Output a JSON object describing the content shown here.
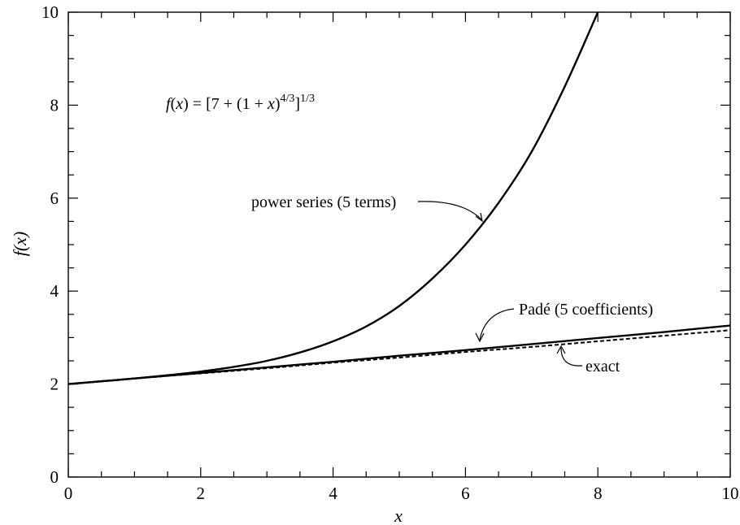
{
  "chart_data": {
    "type": "line",
    "xlabel": "x",
    "ylabel": "f(x)",
    "xlim": [
      0,
      10
    ],
    "ylim": [
      0,
      10
    ],
    "x_ticks": [
      "0",
      "2",
      "4",
      "6",
      "8",
      "10"
    ],
    "y_ticks": [
      "0",
      "2",
      "4",
      "6",
      "8",
      "10"
    ],
    "grid": false,
    "formula": {
      "lhs_f": "f",
      "lhs_open": "(",
      "lhs_x": "x",
      "lhs_close": ") = [7 + (1 + ",
      "inner_x": "x",
      "inner_close": ")",
      "inner_exp": "4/3",
      "outer_close": "]",
      "outer_exp": "1/3"
    },
    "annotations": {
      "power": "power series (5 terms)",
      "pade": "Padé (5 coefficients)",
      "exact": "exact"
    },
    "series": [
      {
        "id": "power",
        "style": "solid",
        "x": [
          0,
          0.5,
          1,
          1.5,
          2,
          2.5,
          3,
          3.5,
          4,
          4.5,
          5,
          5.5,
          6,
          6.5,
          7,
          7.5,
          8
        ],
        "y": [
          2.0,
          2.06,
          2.12,
          2.19,
          2.27,
          2.37,
          2.5,
          2.68,
          2.92,
          3.24,
          3.68,
          4.27,
          5.0,
          5.9,
          7.0,
          8.4,
          10.0
        ]
      },
      {
        "id": "pade",
        "style": "solid",
        "x": [
          0,
          1,
          2,
          3,
          4,
          5,
          6,
          7,
          8,
          9,
          10
        ],
        "y": [
          2.0,
          2.12,
          2.24,
          2.36,
          2.48,
          2.61,
          2.73,
          2.86,
          2.99,
          3.12,
          3.26
        ]
      },
      {
        "id": "exact",
        "style": "dashed",
        "x": [
          0,
          1,
          2,
          3,
          4,
          5,
          6,
          7,
          8,
          9,
          10
        ],
        "y": [
          2.0,
          2.12,
          2.23,
          2.34,
          2.46,
          2.57,
          2.69,
          2.8,
          2.92,
          3.04,
          3.16
        ]
      }
    ]
  }
}
